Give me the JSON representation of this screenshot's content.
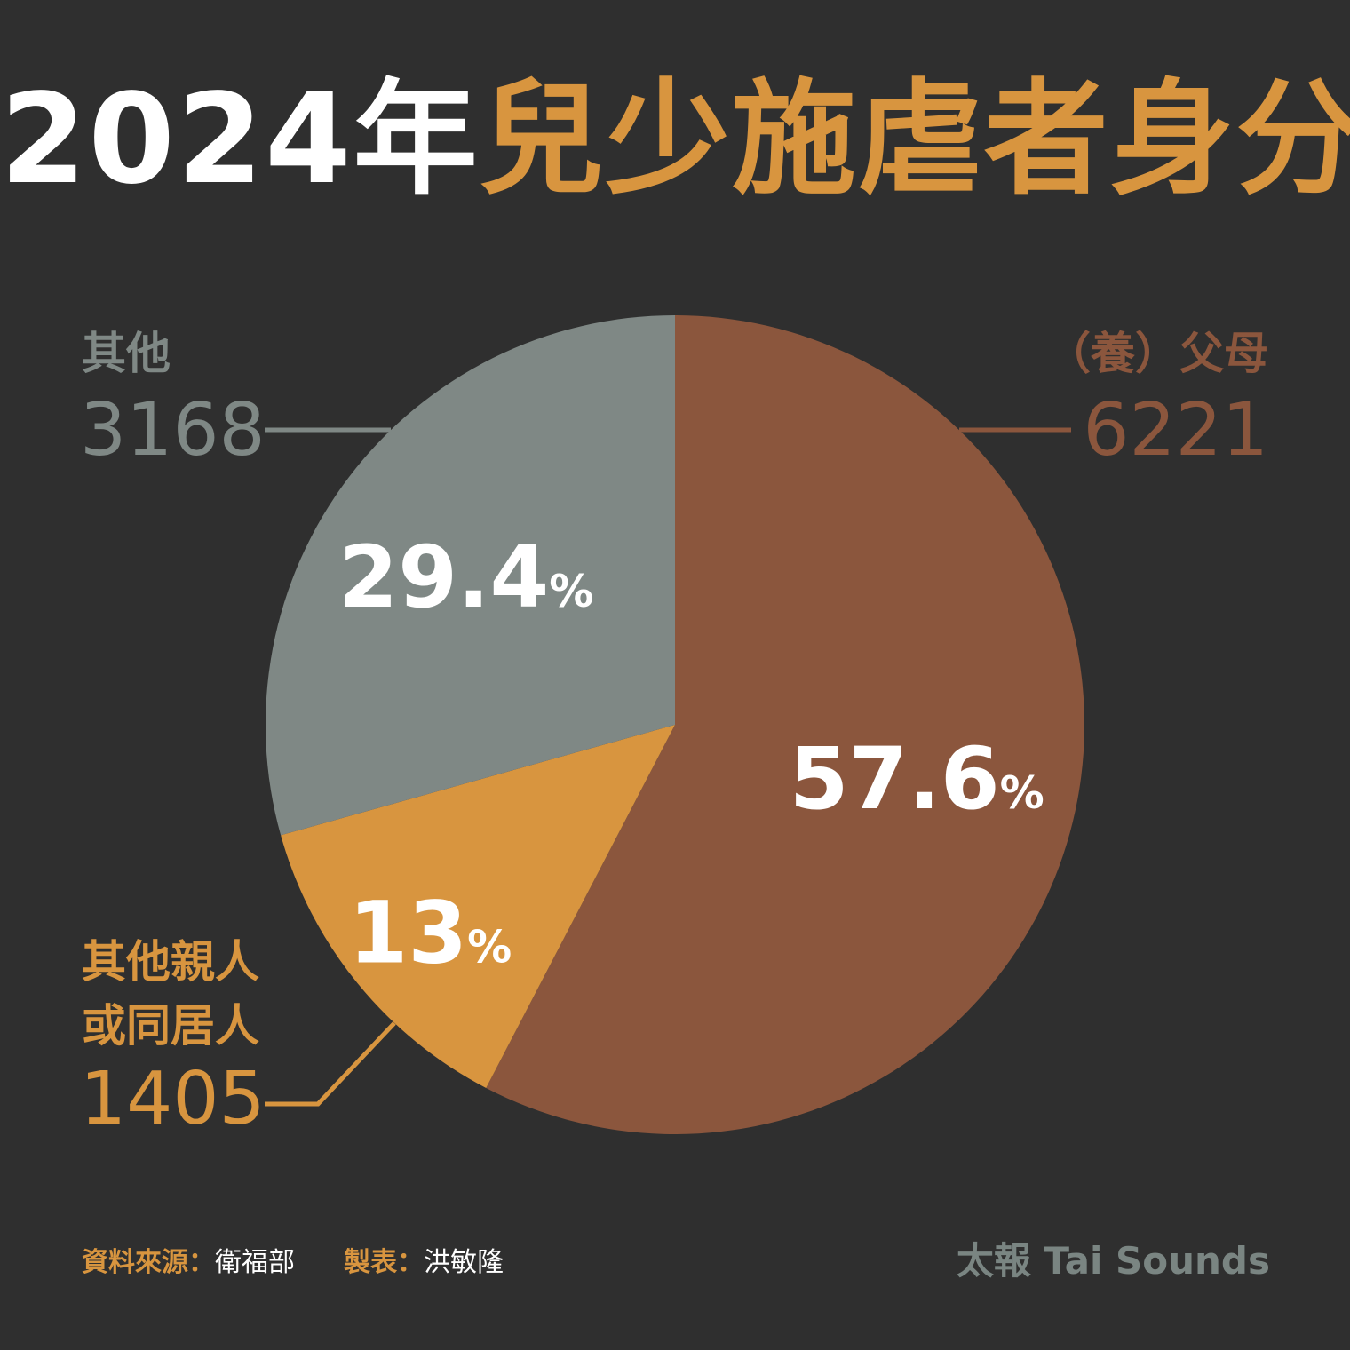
{
  "title": {
    "year": "2024年",
    "subject": "兒少施虐者身分"
  },
  "colors": {
    "background": "#2f2f2f",
    "parents": "#8b563d",
    "relatives": "#d8953f",
    "others": "#7f8885",
    "white": "#ffffff",
    "accent": "#d8953f"
  },
  "chart_data": {
    "type": "pie",
    "slices": [
      {
        "key": "parents",
        "label": "（養）父母",
        "value": 6221,
        "percent": "57.6",
        "pct_sign": "%"
      },
      {
        "key": "relatives",
        "label_lines": [
          "其他親人",
          "或同居人"
        ],
        "value": 1405,
        "percent": "13",
        "pct_sign": "%"
      },
      {
        "key": "others",
        "label": "其他",
        "value": 3168,
        "percent": "29.4",
        "pct_sign": "%"
      }
    ]
  },
  "footer": {
    "source_label": "資料來源：",
    "source_value": "衛福部",
    "maker_label": "製表：",
    "maker_value": "洪敏隆",
    "brand": "太報 Tai Sounds"
  }
}
